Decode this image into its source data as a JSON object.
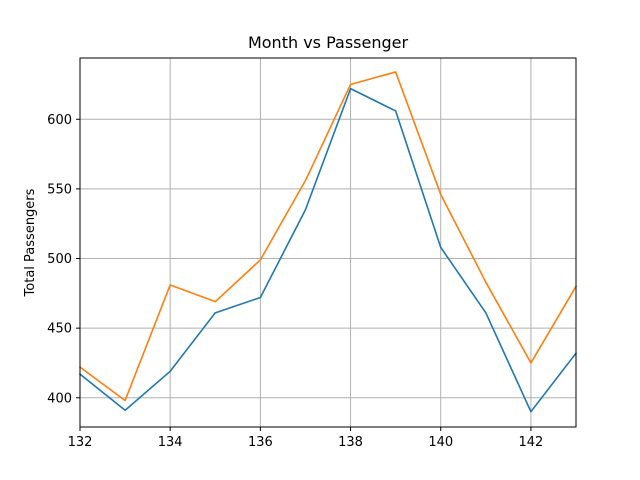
{
  "chart_data": {
    "type": "line",
    "title": "Month vs Passenger",
    "xlabel": "",
    "ylabel": "Total Passengers",
    "x": [
      132,
      133,
      134,
      135,
      136,
      137,
      138,
      139,
      140,
      141,
      142,
      143
    ],
    "xlim": [
      132,
      143
    ],
    "ylim": [
      379,
      644
    ],
    "xticks": [
      132,
      134,
      136,
      138,
      140,
      142
    ],
    "yticks": [
      400,
      450,
      500,
      550,
      600
    ],
    "grid": true,
    "series": [
      {
        "color": "#1f77b4",
        "values": [
          417,
          391,
          419,
          461,
          472,
          535,
          622,
          606,
          508,
          461,
          390,
          432
        ]
      },
      {
        "color": "#ff7f0e",
        "values": [
          422,
          398,
          481,
          469,
          499,
          556,
          625,
          634,
          546,
          483,
          425,
          480
        ]
      }
    ]
  }
}
